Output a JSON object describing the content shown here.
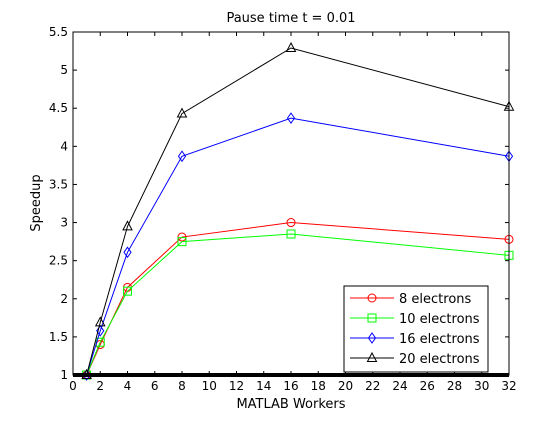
{
  "chart_data": {
    "type": "line",
    "title": "Pause time t = 0.01",
    "xlabel": "MATLAB Workers",
    "ylabel": "Speedup",
    "xlim": [
      0,
      32
    ],
    "ylim": [
      1,
      5.5
    ],
    "xticks": [
      0,
      2,
      4,
      6,
      8,
      10,
      12,
      14,
      16,
      18,
      20,
      22,
      24,
      26,
      28,
      30,
      32
    ],
    "yticks": [
      1,
      1.5,
      2,
      2.5,
      3,
      3.5,
      4,
      4.5,
      5,
      5.5
    ],
    "grid": false,
    "legend_position": "bottom-right",
    "x": [
      1,
      2,
      4,
      8,
      16,
      32
    ],
    "series": [
      {
        "name": "8 electrons",
        "color": "#ff0000",
        "marker": "circle",
        "values": [
          1.0,
          1.4,
          2.15,
          2.81,
          3.0,
          2.78
        ]
      },
      {
        "name": "10 electrons",
        "color": "#00ff00",
        "marker": "square",
        "values": [
          1.0,
          1.43,
          2.1,
          2.75,
          2.85,
          2.57
        ]
      },
      {
        "name": "16 electrons",
        "color": "#0000ff",
        "marker": "diamond",
        "values": [
          1.0,
          1.58,
          2.61,
          3.87,
          4.37,
          3.87
        ]
      },
      {
        "name": "20 electrons",
        "color": "#000000",
        "marker": "triangle",
        "values": [
          1.0,
          1.69,
          2.95,
          4.43,
          5.29,
          4.52
        ]
      }
    ]
  }
}
